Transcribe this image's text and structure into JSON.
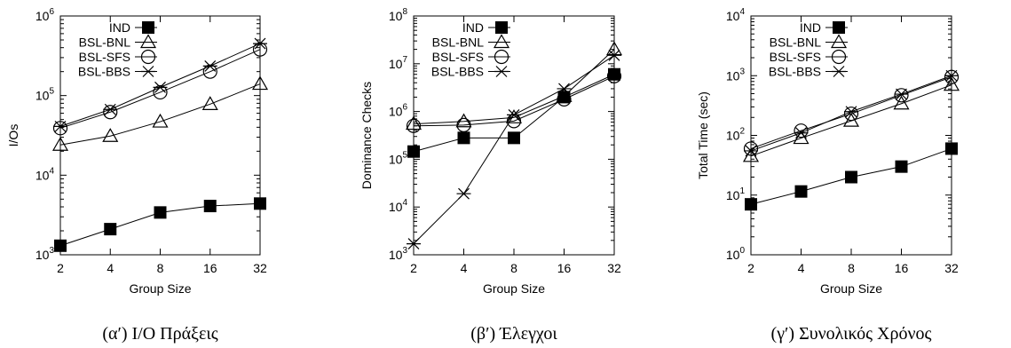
{
  "chart_data": [
    {
      "type": "line",
      "caption": "(α′) I/O Πράξεις",
      "xlabel": "Group Size",
      "ylabel": "I/Os",
      "x": [
        2,
        4,
        8,
        16,
        32
      ],
      "x_scale": "log2",
      "y_scale": "log10",
      "ylim": [
        1000,
        1000000
      ],
      "y_ticks": [
        1000,
        10000,
        100000,
        1000000
      ],
      "legend_position": "top-left",
      "series": [
        {
          "name": "IND",
          "marker": "filled-square",
          "values": [
            1300,
            2100,
            3400,
            4100,
            4400
          ]
        },
        {
          "name": "BSL-BNL",
          "marker": "triangle",
          "values": [
            24000,
            31000,
            47000,
            78000,
            140000
          ]
        },
        {
          "name": "BSL-SFS",
          "marker": "circle",
          "values": [
            39000,
            62000,
            110000,
            200000,
            380000
          ]
        },
        {
          "name": "BSL-BBS",
          "marker": "star",
          "values": [
            41000,
            67000,
            127000,
            235000,
            450000
          ]
        }
      ]
    },
    {
      "type": "line",
      "caption": "(β′) Έλεγχοι",
      "xlabel": "Group Size",
      "ylabel": "Dominance Checks",
      "x": [
        2,
        4,
        8,
        16,
        32
      ],
      "x_scale": "log2",
      "y_scale": "log10",
      "ylim": [
        1000,
        100000000
      ],
      "y_ticks": [
        1000,
        10000,
        100000,
        1000000,
        10000000,
        100000000
      ],
      "legend_position": "top-left",
      "series": [
        {
          "name": "IND",
          "marker": "filled-square",
          "values": [
            145000,
            280000,
            280000,
            2000000,
            6000000
          ]
        },
        {
          "name": "BSL-BNL",
          "marker": "triangle",
          "values": [
            550000,
            620000,
            750000,
            2100000,
            20000000
          ]
        },
        {
          "name": "BSL-SFS",
          "marker": "circle",
          "values": [
            500000,
            520000,
            630000,
            1800000,
            5500000
          ]
        },
        {
          "name": "BSL-BBS",
          "marker": "star",
          "values": [
            1700,
            19000,
            850000,
            3000000,
            15000000
          ]
        }
      ]
    },
    {
      "type": "line",
      "caption": "(γ′) Συνολικός Χρόνος",
      "xlabel": "Group Size",
      "ylabel": "Total Time (sec)",
      "x": [
        2,
        4,
        8,
        16,
        32
      ],
      "x_scale": "log2",
      "y_scale": "log10",
      "ylim": [
        1,
        10000
      ],
      "y_ticks": [
        1,
        10,
        100,
        1000,
        10000
      ],
      "legend_position": "top-left",
      "series": [
        {
          "name": "IND",
          "marker": "filled-square",
          "values": [
            7,
            11.5,
            20,
            30,
            60
          ]
        },
        {
          "name": "BSL-BNL",
          "marker": "triangle",
          "values": [
            45,
            90,
            175,
            340,
            700
          ]
        },
        {
          "name": "BSL-SFS",
          "marker": "circle",
          "values": [
            60,
            120,
            230,
            470,
            950
          ]
        },
        {
          "name": "BSL-BBS",
          "marker": "star",
          "values": [
            55,
            110,
            250,
            490,
            1000
          ]
        }
      ]
    }
  ]
}
